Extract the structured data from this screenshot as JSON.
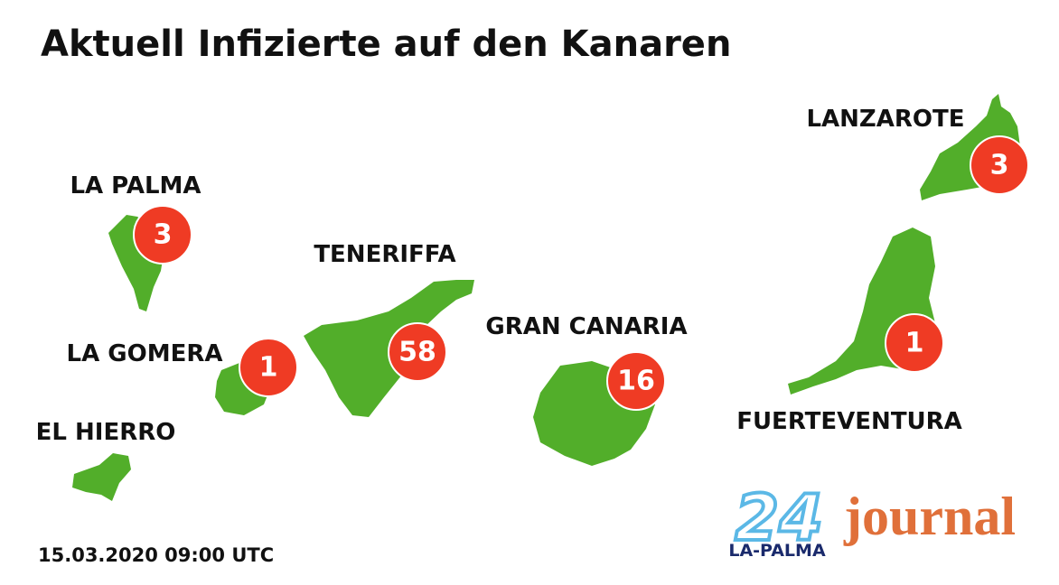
{
  "title": "Aktuell Infizierte auf den Kanaren",
  "islands": [
    {
      "name": "LA PALMA",
      "cases": 3
    },
    {
      "name": "LA GOMERA",
      "cases": 1
    },
    {
      "name": "EL HIERRO"
    },
    {
      "name": "TENERIFFA",
      "cases": 58
    },
    {
      "name": "GRAN CANARIA",
      "cases": 16
    },
    {
      "name": "LANZAROTE",
      "cases": 3
    },
    {
      "name": "FUERTEVENTURA",
      "cases": 1
    }
  ],
  "timestamp": "15.03.2020 09:00 UTC",
  "logo": {
    "number": "24",
    "site": "LA-PALMA",
    "brand": "journal"
  }
}
